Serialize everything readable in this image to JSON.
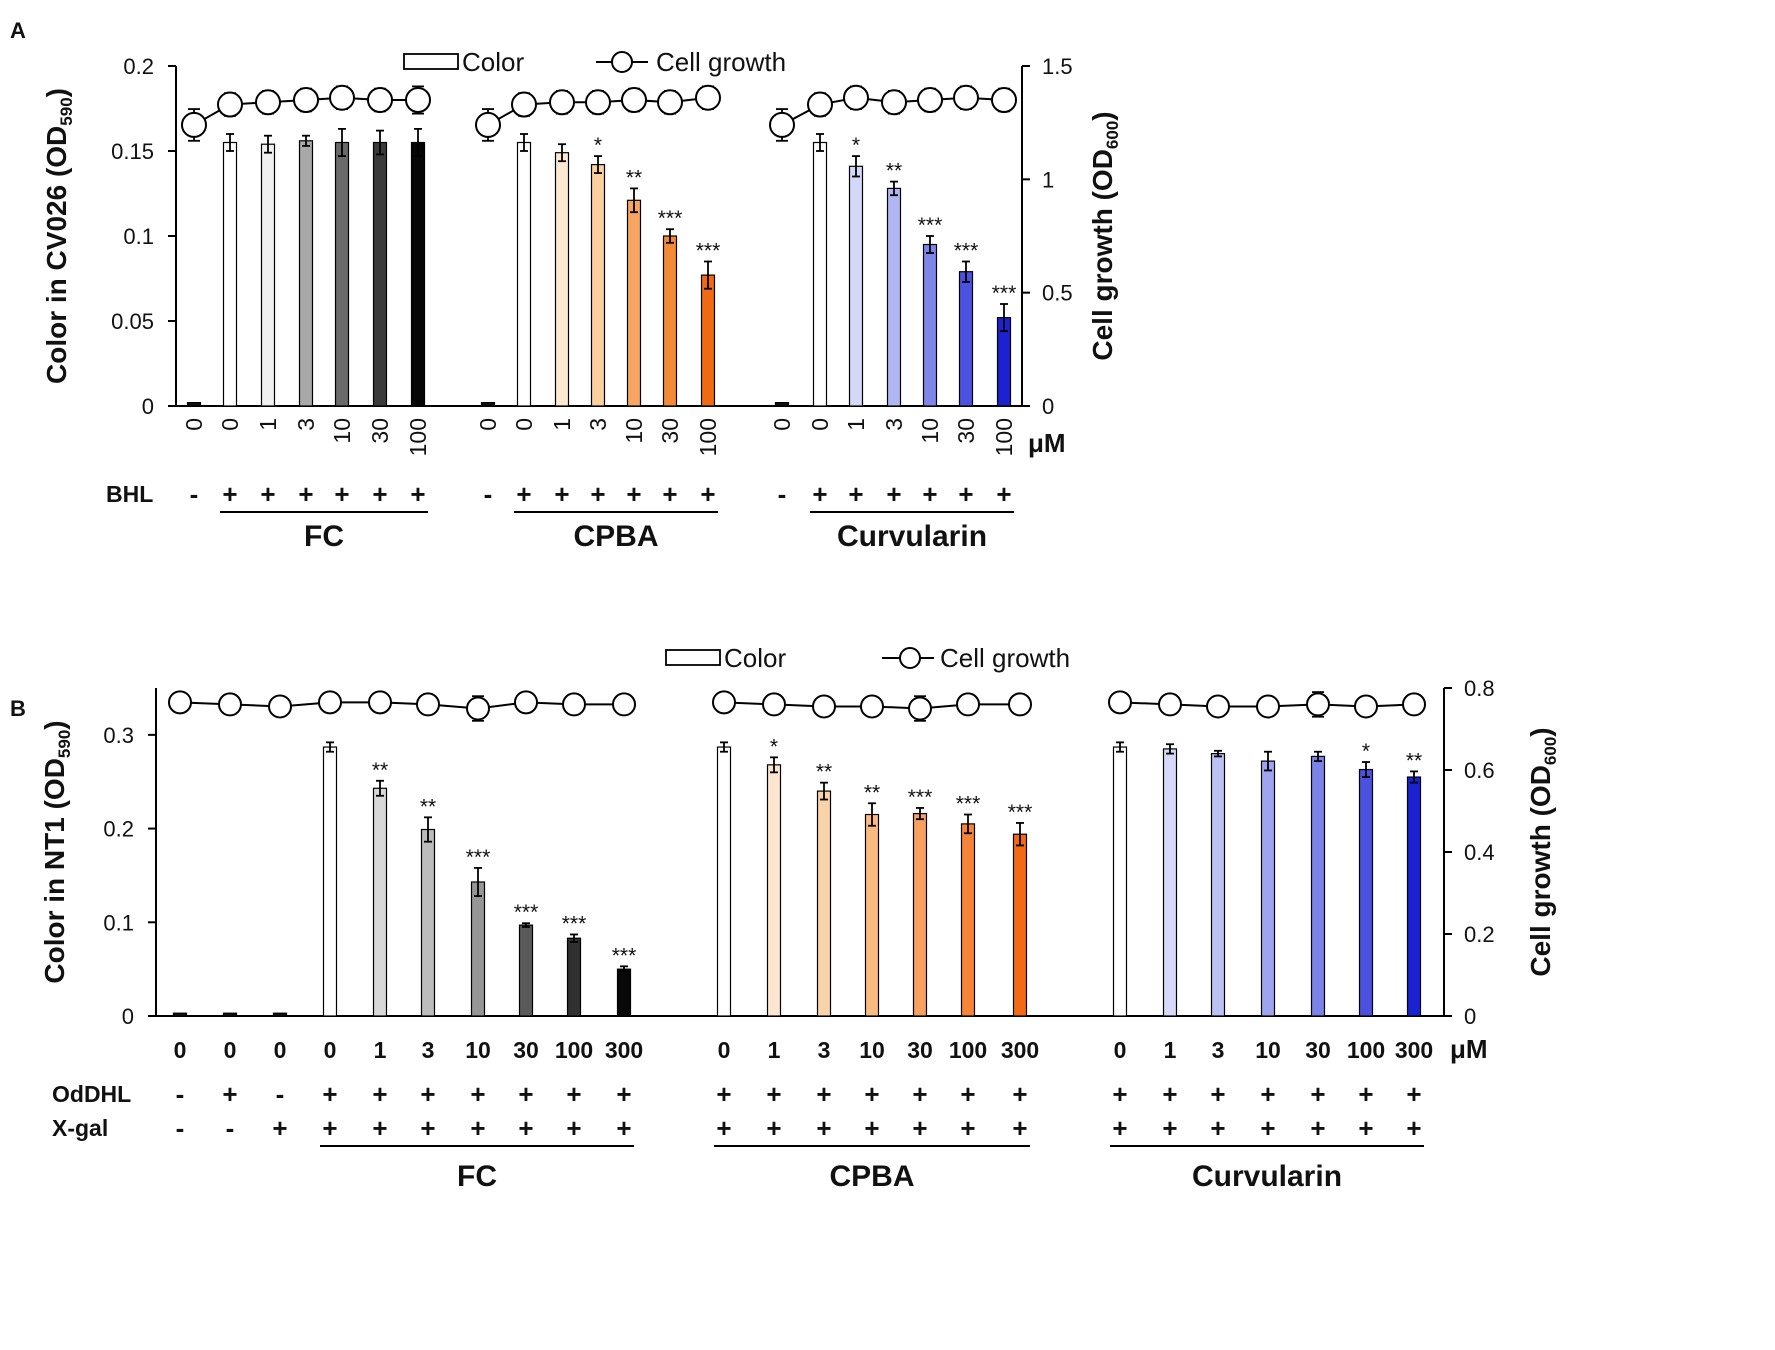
{
  "chart_data": [
    {
      "type": "bar",
      "panel_label": "A",
      "legend": {
        "bar_label": "Color",
        "line_label": "Cell growth",
        "placement": "top-center"
      },
      "ylabel": {
        "main": "Color in CV026 (OD",
        "sub": "590",
        "close": ")"
      },
      "y2label": {
        "main": "Cell growth (OD",
        "sub": "600",
        "close": ")"
      },
      "ylim": [
        0,
        0.2
      ],
      "yticks": [
        "0",
        "0.05",
        "0.1",
        "0.15",
        "0.2"
      ],
      "ytick_values": [
        0,
        0.05,
        0.1,
        0.15,
        0.2
      ],
      "y2lim": [
        0,
        1.5
      ],
      "y2ticks": [
        "0",
        "0.5",
        "1",
        "1.5"
      ],
      "y2tick_values": [
        0,
        0.5,
        1,
        1.5
      ],
      "unit_label": "μM",
      "row_labels": [
        "BHL"
      ],
      "groups": [
        {
          "name": "FC",
          "concentrations": [
            "0",
            "0",
            "1",
            "3",
            "10",
            "30",
            "100"
          ],
          "color_values": [
            0.002,
            0.155,
            0.154,
            0.156,
            0.155,
            0.155,
            0.155
          ],
          "color_errors": [
            0,
            0.005,
            0.005,
            0.003,
            0.008,
            0.007,
            0.008
          ],
          "growth_values": [
            1.24,
            1.33,
            1.34,
            1.35,
            1.36,
            1.35,
            1.35
          ],
          "growth_errors": [
            0.07,
            0.05,
            0.05,
            0.05,
            0.05,
            0.05,
            0.06
          ],
          "bar_colors": [
            "#111111",
            "#ffffff",
            "#f0f0f0",
            "#a8a8a8",
            "#6a6a6a",
            "#3a3a3a",
            "#050505"
          ],
          "significance": [
            "",
            "",
            "",
            "",
            "",
            "",
            ""
          ],
          "rows": [
            [
              "-",
              "+",
              "+",
              "+",
              "+",
              "+",
              "+"
            ]
          ]
        },
        {
          "name": "CPBA",
          "concentrations": [
            "0",
            "0",
            "1",
            "3",
            "10",
            "30",
            "100"
          ],
          "color_values": [
            0.002,
            0.155,
            0.149,
            0.142,
            0.121,
            0.1,
            0.077
          ],
          "color_errors": [
            0,
            0.005,
            0.005,
            0.005,
            0.007,
            0.004,
            0.008
          ],
          "growth_values": [
            1.24,
            1.33,
            1.34,
            1.34,
            1.35,
            1.34,
            1.36
          ],
          "growth_errors": [
            0.07,
            0.05,
            0.05,
            0.05,
            0.05,
            0.05,
            0.05
          ],
          "bar_colors": [
            "#111111",
            "#ffffff",
            "#fde9d2",
            "#fbcf9e",
            "#f7a560",
            "#f58a36",
            "#f06a14"
          ],
          "significance": [
            "",
            "",
            "",
            "*",
            "**",
            "***",
            "***"
          ],
          "rows": [
            [
              "-",
              "+",
              "+",
              "+",
              "+",
              "+",
              "+"
            ]
          ]
        },
        {
          "name": "Curvularin",
          "concentrations": [
            "0",
            "0",
            "1",
            "3",
            "10",
            "30",
            "100"
          ],
          "color_values": [
            0.002,
            0.155,
            0.141,
            0.128,
            0.095,
            0.079,
            0.052
          ],
          "color_errors": [
            0,
            0.005,
            0.006,
            0.004,
            0.005,
            0.006,
            0.008
          ],
          "growth_values": [
            1.24,
            1.33,
            1.36,
            1.34,
            1.35,
            1.36,
            1.35
          ],
          "growth_errors": [
            0.07,
            0.05,
            0.05,
            0.05,
            0.05,
            0.05,
            0.05
          ],
          "bar_colors": [
            "#111111",
            "#ffffff",
            "#d4d8f8",
            "#b0b6f2",
            "#7f86ea",
            "#4b52e0",
            "#1c22d0"
          ],
          "significance": [
            "",
            "",
            "*",
            "**",
            "***",
            "***",
            "***"
          ],
          "rows": [
            [
              "-",
              "+",
              "+",
              "+",
              "+",
              "+",
              "+"
            ]
          ]
        }
      ]
    },
    {
      "type": "bar",
      "panel_label": "B",
      "legend": {
        "bar_label": "Color",
        "line_label": "Cell growth",
        "placement": "top-center"
      },
      "ylabel": {
        "main": "Color in NT1 (OD",
        "sub": "590",
        "close": ")"
      },
      "y2label": {
        "main": "Cell growth (OD",
        "sub": "600",
        "close": ")"
      },
      "ylim": [
        0,
        0.35
      ],
      "yticks": [
        "0",
        "0.1",
        "0.2",
        "0.3"
      ],
      "ytick_values": [
        0,
        0.1,
        0.2,
        0.3
      ],
      "y2lim": [
        0,
        0.8
      ],
      "y2ticks": [
        "0",
        "0.2",
        "0.4",
        "0.6",
        "0.8"
      ],
      "y2tick_values": [
        0,
        0.2,
        0.4,
        0.6,
        0.8
      ],
      "unit_label": "μM",
      "row_labels": [
        "OdDHL",
        "X-gal"
      ],
      "groups": [
        {
          "name": "FC",
          "concentrations": [
            "0",
            "0",
            "0",
            "0",
            "1",
            "3",
            "10",
            "30",
            "100",
            "300"
          ],
          "color_values": [
            0.003,
            0.003,
            0.003,
            0.287,
            0.243,
            0.199,
            0.143,
            0.097,
            0.083,
            0.05
          ],
          "color_errors": [
            0,
            0,
            0,
            0.005,
            0.008,
            0.013,
            0.015,
            0.002,
            0.004,
            0.003
          ],
          "growth_values": [
            0.765,
            0.76,
            0.755,
            0.765,
            0.765,
            0.76,
            0.75,
            0.765,
            0.76,
            0.76
          ],
          "growth_errors": [
            0.01,
            0.01,
            0.02,
            0.02,
            0.02,
            0.02,
            0.03,
            0.02,
            0.02,
            0.01
          ],
          "bar_colors": [
            "#111111",
            "#111111",
            "#111111",
            "#ffffff",
            "#d8d8d8",
            "#bcbcbc",
            "#969696",
            "#5a5a5a",
            "#303030",
            "#080808"
          ],
          "significance": [
            "",
            "",
            "",
            "",
            "**",
            "**",
            "***",
            "***",
            "***",
            "***"
          ],
          "rows": [
            [
              "-",
              "+",
              "-",
              "+",
              "+",
              "+",
              "+",
              "+",
              "+",
              "+"
            ],
            [
              "-",
              "-",
              "+",
              "+",
              "+",
              "+",
              "+",
              "+",
              "+",
              "+"
            ]
          ],
          "underline_from": 3
        },
        {
          "name": "CPBA",
          "concentrations": [
            "0",
            "1",
            "3",
            "10",
            "30",
            "100",
            "300"
          ],
          "color_values": [
            0.287,
            0.268,
            0.24,
            0.215,
            0.216,
            0.205,
            0.194
          ],
          "color_errors": [
            0.005,
            0.008,
            0.009,
            0.012,
            0.006,
            0.01,
            0.012
          ],
          "growth_values": [
            0.765,
            0.76,
            0.755,
            0.755,
            0.75,
            0.76,
            0.76
          ],
          "growth_errors": [
            0.01,
            0.01,
            0.01,
            0.01,
            0.03,
            0.02,
            0.02
          ],
          "bar_colors": [
            "#ffffff",
            "#fde6cf",
            "#fbd3aa",
            "#f9bb80",
            "#f7a060",
            "#f58438",
            "#f26a16"
          ],
          "significance": [
            "",
            "*",
            "**",
            "**",
            "***",
            "***",
            "***"
          ],
          "rows": [
            [
              "+",
              "+",
              "+",
              "+",
              "+",
              "+",
              "+"
            ],
            [
              "+",
              "+",
              "+",
              "+",
              "+",
              "+",
              "+"
            ]
          ],
          "underline_from": 0
        },
        {
          "name": "Curvularin",
          "concentrations": [
            "0",
            "1",
            "3",
            "10",
            "30",
            "100",
            "300"
          ],
          "color_values": [
            0.287,
            0.285,
            0.28,
            0.272,
            0.277,
            0.263,
            0.255
          ],
          "color_errors": [
            0.005,
            0.005,
            0.003,
            0.01,
            0.005,
            0.008,
            0.006
          ],
          "growth_values": [
            0.765,
            0.76,
            0.755,
            0.755,
            0.76,
            0.755,
            0.76
          ],
          "growth_errors": [
            0.01,
            0.01,
            0.02,
            0.01,
            0.03,
            0.01,
            0.01
          ],
          "bar_colors": [
            "#ffffff",
            "#d6daf8",
            "#bcc1f4",
            "#9ea4ee",
            "#7c83e8",
            "#4a52de",
            "#1a22d2"
          ],
          "significance": [
            "",
            "",
            "",
            "",
            "",
            "*",
            "**"
          ],
          "rows": [
            [
              "+",
              "+",
              "+",
              "+",
              "+",
              "+",
              "+"
            ],
            [
              "+",
              "+",
              "+",
              "+",
              "+",
              "+",
              "+"
            ]
          ],
          "underline_from": 0
        }
      ]
    }
  ]
}
